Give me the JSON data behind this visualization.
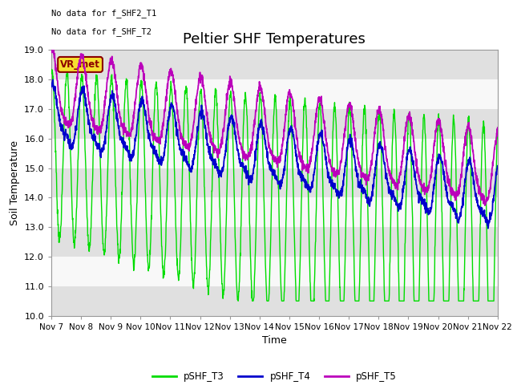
{
  "title": "Peltier SHF Temperatures",
  "ylabel": "Soil Temperature",
  "xlabel": "Time",
  "ylim": [
    10.0,
    19.0
  ],
  "yticks": [
    10.0,
    11.0,
    12.0,
    13.0,
    14.0,
    15.0,
    16.0,
    17.0,
    18.0,
    19.0
  ],
  "xlim": [
    0,
    15
  ],
  "xtick_labels": [
    "Nov 7",
    "Nov 8",
    "Nov 9",
    "Nov 10",
    "Nov 11",
    "Nov 12",
    "Nov 13",
    "Nov 14",
    "Nov 15",
    "Nov 16",
    "Nov 17",
    "Nov 18",
    "Nov 19",
    "Nov 20",
    "Nov 21",
    "Nov 22"
  ],
  "no_data_text1": "No data for f_SHF2_T1",
  "no_data_text2": "No data for f_SHF_T2",
  "vr_met_label": "VR_met",
  "legend_labels": [
    "pSHF_T3",
    "pSHF_T4",
    "pSHF_T5"
  ],
  "color_T3": "#00dd00",
  "color_T4": "#0000cc",
  "color_T5": "#bb00bb",
  "bg_color": "#e8e8e8",
  "plot_bg": "#f0f0f0",
  "title_fontsize": 13,
  "label_fontsize": 9,
  "tick_fontsize": 8
}
